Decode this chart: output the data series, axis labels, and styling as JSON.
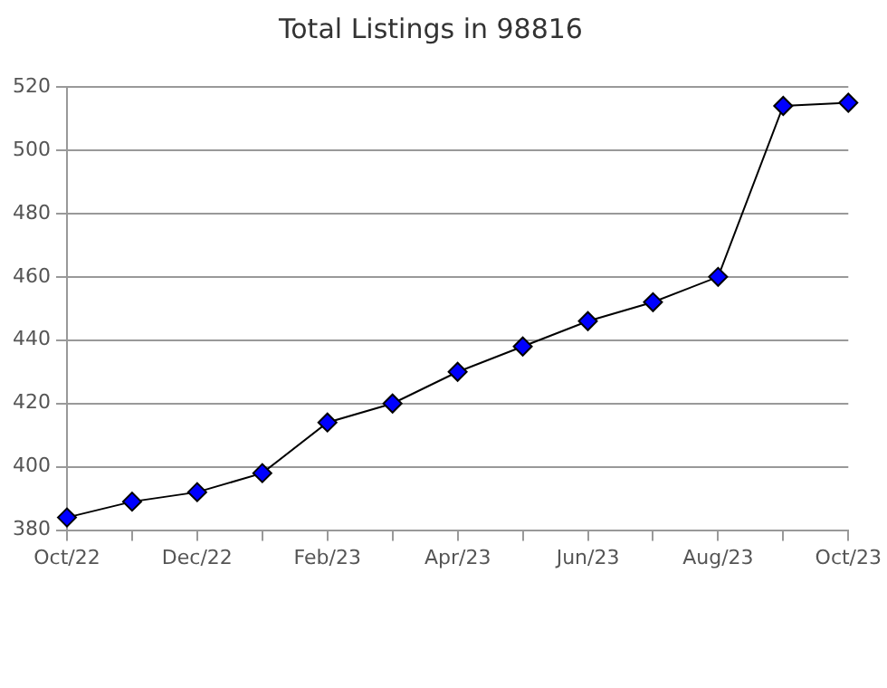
{
  "chart_data": {
    "type": "line",
    "title": "Total Listings in 98816",
    "categories": [
      "Oct/22",
      null,
      "Dec/22",
      null,
      "Feb/23",
      null,
      "Apr/23",
      null,
      "Jun/23",
      null,
      "Aug/23",
      null,
      "Oct/23"
    ],
    "series": [
      {
        "color": "#0000ff",
        "values": [
          384,
          389,
          392,
          398,
          414,
          420,
          430,
          438,
          446,
          452,
          460,
          514,
          515
        ]
      }
    ],
    "ylim": [
      380,
      520
    ],
    "yticks": [
      380,
      400,
      420,
      440,
      460,
      480,
      500,
      520
    ],
    "grid": "y",
    "legend": false,
    "marker": "diamond",
    "line_style": "solid"
  }
}
